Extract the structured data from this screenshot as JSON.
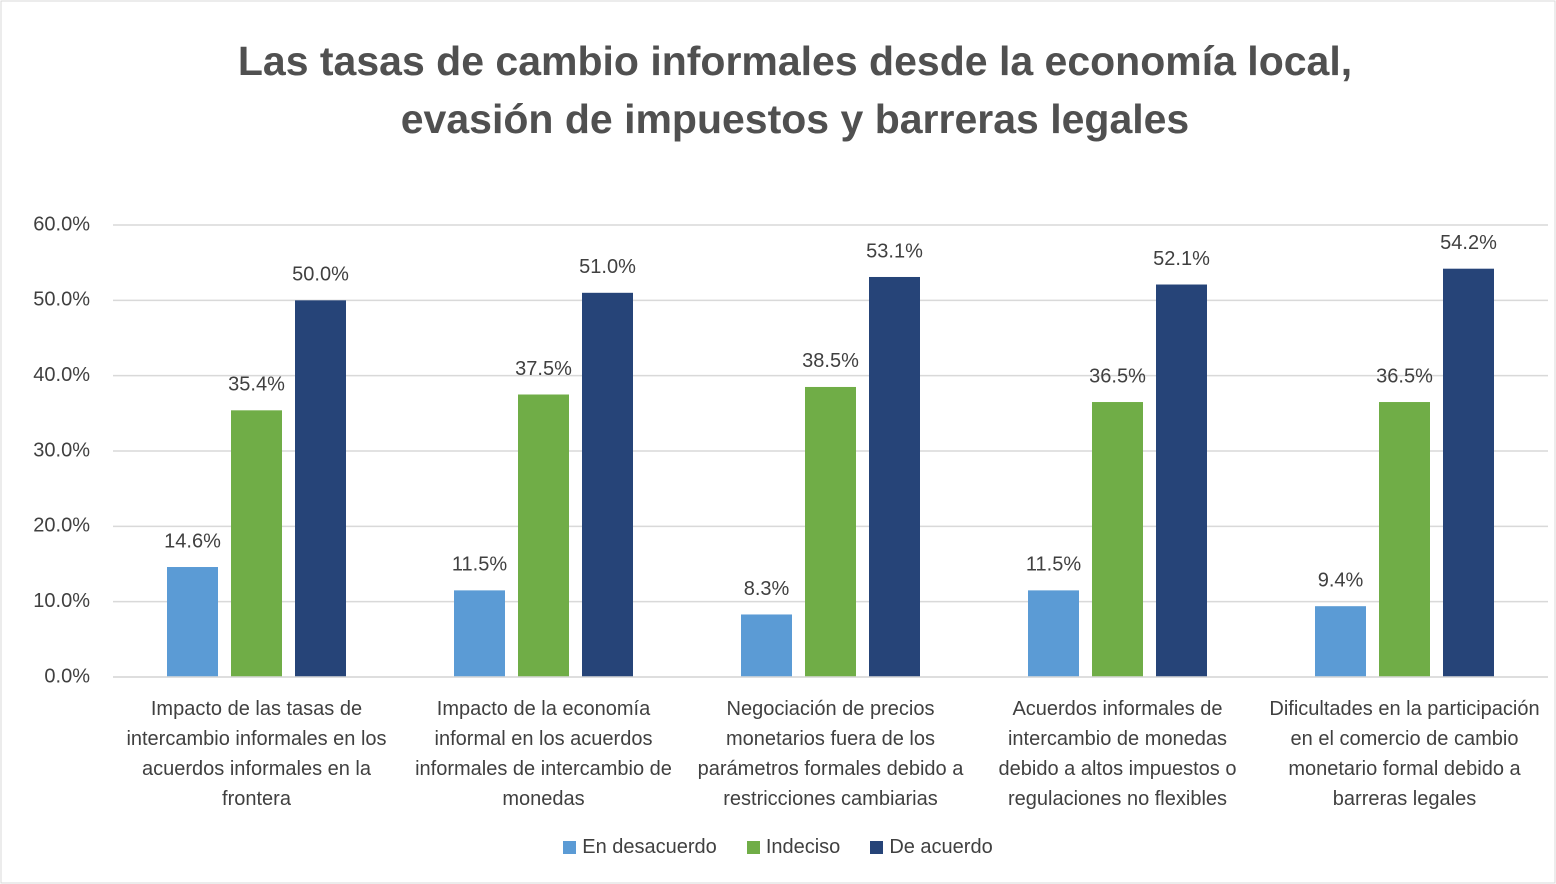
{
  "chart_data": {
    "type": "bar",
    "title": "Las tasas de cambio informales desde la economía local, evasión de impuestos y barreras legales",
    "categories": [
      "Impacto de las tasas de intercambio informales en los acuerdos informales en la frontera",
      "Impacto de la economía informal en los acuerdos informales de intercambio de monedas",
      "Negociación de precios monetarios fuera de los parámetros formales debido a restricciones cambiarias",
      "Acuerdos informales de intercambio de monedas debido a altos impuestos o regulaciones no flexibles",
      "Dificultades en la participación en el comercio de cambio monetario formal debido a barreras legales"
    ],
    "series": [
      {
        "name": "En desacuerdo",
        "color": "#5b9bd5",
        "values": [
          14.6,
          11.5,
          8.3,
          11.5,
          9.4
        ],
        "value_labels": [
          "14.6%",
          "11.5%",
          "8.3%",
          "11.5%",
          "9.4%"
        ]
      },
      {
        "name": "Indeciso",
        "color": "#70ad47",
        "values": [
          35.4,
          37.5,
          38.5,
          36.5,
          36.5
        ],
        "value_labels": [
          "35.4%",
          "37.5%",
          "38.5%",
          "36.5%",
          "36.5%"
        ]
      },
      {
        "name": "De acuerdo",
        "color": "#264478",
        "values": [
          50.0,
          51.0,
          53.1,
          52.1,
          54.2
        ],
        "value_labels": [
          "50.0%",
          "51.0%",
          "53.1%",
          "52.1%",
          "54.2%"
        ]
      }
    ],
    "ylim": [
      0,
      60
    ],
    "yticks": [
      {
        "value": 0,
        "label": "0.0%"
      },
      {
        "value": 10,
        "label": "10.0%"
      },
      {
        "value": 20,
        "label": "20.0%"
      },
      {
        "value": 30,
        "label": "30.0%"
      },
      {
        "value": 40,
        "label": "40.0%"
      },
      {
        "value": 50,
        "label": "50.0%"
      },
      {
        "value": 60,
        "label": "60.0%"
      }
    ],
    "grid": true,
    "legend": "bottom"
  }
}
